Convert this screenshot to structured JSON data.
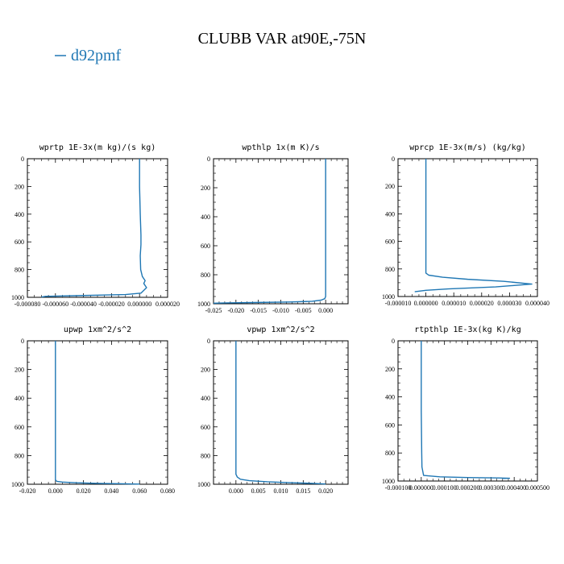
{
  "title": "CLUBB VAR at90E,-75N",
  "legend": {
    "label": "d92pmf",
    "color": "#1f77b4",
    "placement": "top-left"
  },
  "line_color": "#1f77b4",
  "chart_data": [
    {
      "type": "line",
      "title": "wprtp  1E-3x(m kg)/(s kg)",
      "xlim": [
        -8e-05,
        2e-05
      ],
      "ylim": [
        1000,
        0
      ],
      "xticks": [
        -8e-05,
        -6e-05,
        -4e-05,
        -2e-05,
        0.0,
        2e-05
      ],
      "xtick_labels": [
        "-0.000080",
        "-0.000060",
        "-0.000040",
        "-0.000020",
        "0.000000",
        "0.000020"
      ],
      "yticks": [
        0,
        200,
        400,
        600,
        800,
        1000
      ],
      "ytick_labels": [
        "0",
        "200",
        "400",
        "600",
        "800",
        "1000"
      ],
      "series": [
        {
          "x": [
            0.0,
            0.0,
            5e-07,
            1e-06,
            1e-06,
            5e-07,
            8e-07,
            2e-06,
            4e-06,
            3e-06,
            5e-06,
            1e-06,
            -1e-05,
            -4e-05,
            -6.7e-05,
            -7e-05
          ],
          "y": [
            0,
            200,
            400,
            550,
            620,
            700,
            800,
            850,
            880,
            900,
            930,
            970,
            980,
            987,
            993,
            998
          ]
        }
      ]
    },
    {
      "type": "line",
      "title": "wpthlp  1x(m K)/s",
      "xlim": [
        -0.025,
        0.005
      ],
      "ylim": [
        1000,
        0
      ],
      "xticks": [
        -0.025,
        -0.02,
        -0.015,
        -0.01,
        -0.005,
        0.0
      ],
      "xtick_labels": [
        "-0.025",
        "-0.020",
        "-0.015",
        "-0.010",
        "-0.005",
        "0.000"
      ],
      "yticks": [
        0,
        200,
        400,
        600,
        800,
        1000
      ],
      "ytick_labels": [
        "0",
        "200",
        "400",
        "600",
        "800",
        "1000"
      ],
      "series": [
        {
          "x": [
            0.0,
            0.0,
            0.0,
            0.0,
            -0.0002,
            -0.001,
            -0.003,
            -0.008,
            -0.015,
            -0.022,
            -0.025
          ],
          "y": [
            0,
            400,
            800,
            950,
            965,
            975,
            983,
            988,
            991,
            994,
            996
          ]
        }
      ]
    },
    {
      "type": "line",
      "title": "wprcp  1E-3x(m/s) (kg/kg)",
      "xlim": [
        -1e-05,
        4e-05
      ],
      "ylim": [
        1000,
        0
      ],
      "xticks": [
        -1e-05,
        0.0,
        1e-05,
        2e-05,
        3e-05,
        4e-05
      ],
      "xtick_labels": [
        "-0.000010",
        "0.000000",
        "0.000010",
        "0.000020",
        "0.000030",
        "0.000040"
      ],
      "yticks": [
        0,
        200,
        400,
        600,
        800,
        1000
      ],
      "ytick_labels": [
        "0",
        "200",
        "400",
        "600",
        "800",
        "1000"
      ],
      "series": [
        {
          "x": [
            0.0,
            0.0,
            0.0,
            1e-06,
            6e-06,
            1.5e-05,
            2.8e-05,
            3.8e-05,
            2.5e-05,
            8e-06,
            0.0,
            -4e-06
          ],
          "y": [
            0,
            400,
            830,
            845,
            860,
            875,
            890,
            910,
            930,
            945,
            955,
            965
          ]
        }
      ]
    },
    {
      "type": "line",
      "title": "upwp  1xm^2/s^2",
      "xlim": [
        -0.02,
        0.08
      ],
      "ylim": [
        1000,
        0
      ],
      "xticks": [
        -0.02,
        0.0,
        0.02,
        0.04,
        0.06,
        0.08
      ],
      "xtick_labels": [
        "-0.020",
        "0.000",
        "0.020",
        "0.040",
        "0.060",
        "0.080"
      ],
      "yticks": [
        0,
        200,
        400,
        600,
        800,
        1000
      ],
      "ytick_labels": [
        "0",
        "200",
        "400",
        "600",
        "800",
        "1000"
      ],
      "series": [
        {
          "x": [
            0.0,
            0.0,
            0.0,
            0.001,
            0.005,
            0.015,
            0.03,
            0.045,
            0.055,
            0.06
          ],
          "y": [
            0,
            500,
            970,
            980,
            985,
            990,
            994,
            996,
            998,
            999
          ]
        }
      ]
    },
    {
      "type": "line",
      "title": "vpwp  1xm^2/s^2",
      "xlim": [
        -0.005,
        0.025
      ],
      "ylim": [
        1000,
        0
      ],
      "xticks": [
        0.0,
        0.005,
        0.01,
        0.015,
        0.02
      ],
      "xtick_labels": [
        "0.000",
        "0.005",
        "0.010",
        "0.015",
        "0.020"
      ],
      "yticks": [
        0,
        200,
        400,
        600,
        800,
        1000
      ],
      "ytick_labels": [
        "0",
        "200",
        "400",
        "600",
        "800",
        "1000"
      ],
      "series": [
        {
          "x": [
            0.0,
            0.0,
            0.0,
            0.0003,
            0.001,
            0.003,
            0.007,
            0.012,
            0.017,
            0.02
          ],
          "y": [
            0,
            500,
            930,
            950,
            965,
            975,
            983,
            989,
            994,
            998
          ]
        }
      ]
    },
    {
      "type": "line",
      "title": "rtpthlp  1E-3x(kg K)/kg",
      "xlim": [
        -0.0001,
        0.0005
      ],
      "ylim": [
        1000,
        0
      ],
      "xticks": [
        -0.0001,
        0.0,
        0.0001,
        0.0002,
        0.0003,
        0.0004,
        0.0005
      ],
      "xtick_labels": [
        "-0.000100",
        "0.000000",
        "0.000100",
        "0.000200",
        "0.000300",
        "0.000400",
        "0.000500"
      ],
      "yticks": [
        0,
        200,
        400,
        600,
        800,
        1000
      ],
      "ytick_labels": [
        "0",
        "200",
        "400",
        "600",
        "800",
        "1000"
      ],
      "series": [
        {
          "x": [
            0.0,
            0.0,
            2e-06,
            3e-06,
            1e-05,
            8e-05,
            0.0002,
            0.00033,
            0.00038,
            0.00035
          ],
          "y": [
            0,
            500,
            800,
            900,
            960,
            970,
            975,
            978,
            980,
            982
          ]
        }
      ]
    }
  ]
}
